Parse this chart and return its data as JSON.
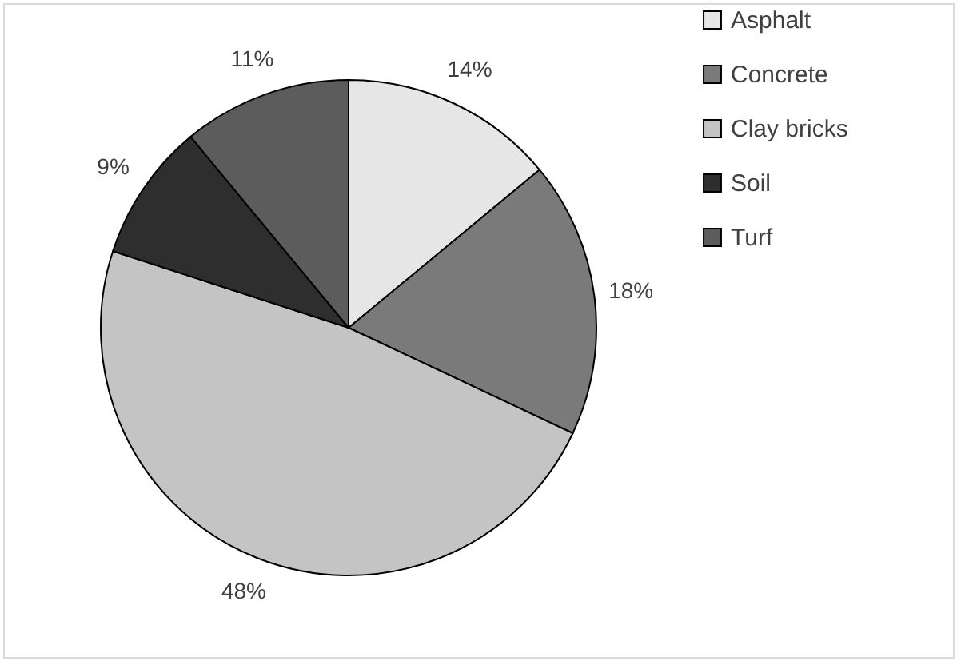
{
  "chart_data": {
    "type": "pie",
    "categories": [
      "Asphalt",
      "Concrete",
      "Clay bricks",
      "Soil",
      "Turf"
    ],
    "values": [
      14,
      18,
      48,
      9,
      11
    ],
    "value_labels": [
      "14%",
      "18%",
      "48%",
      "9%",
      "11%"
    ],
    "colors": [
      "#e6e6e6",
      "#7a7a7a",
      "#c4c4c4",
      "#2e2e2e",
      "#5c5c5c"
    ],
    "legend": "right"
  }
}
